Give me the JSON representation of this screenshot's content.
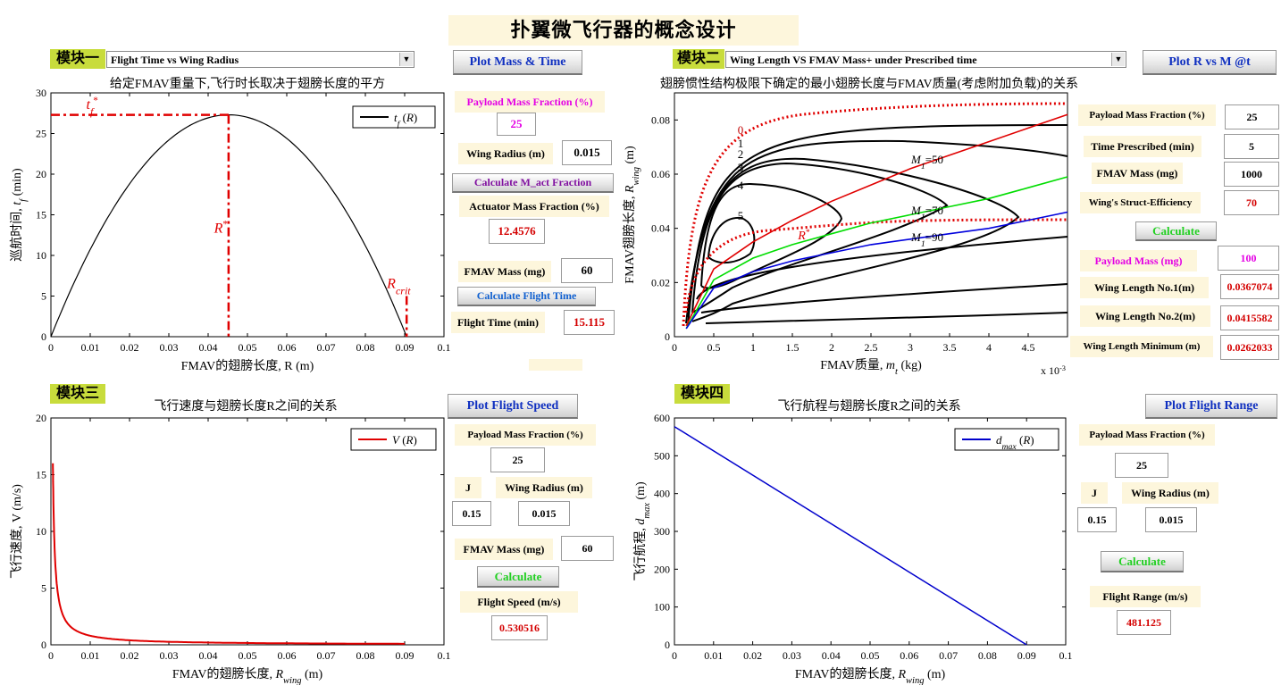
{
  "page_title": "扑翼微飞行器的概念设计",
  "module1": {
    "tag": "模块一",
    "dropdown_value": "Flight Time vs Wing Radius",
    "plot_button": "Plot Mass & Time",
    "plot_title": "给定FMAV重量下,飞行时长取决于翅膀长度的平方",
    "payload_label": "Payload Mass Fraction (%)",
    "payload_value": "25",
    "wing_radius_label": "Wing Radius (m)",
    "wing_radius_value": "0.015",
    "calc_act_button": "Calculate M_act Fraction",
    "actuator_label": "Actuator Mass Fraction (%)",
    "actuator_value": "12.4576",
    "fmav_mass_label": "FMAV Mass (mg)",
    "fmav_mass_value": "60",
    "calc_time_button": "Calculate Flight Time",
    "flight_time_label": "Flight Time (min)",
    "flight_time_value": "15.115"
  },
  "module2": {
    "tag": "模块二",
    "dropdown_value": "Wing Length VS FMAV Mass+ under Prescribed time",
    "plot_button": "Plot R vs M @t",
    "plot_title": "翅膀惯性结构极限下确定的最小翅膀长度与FMAV质量(考虑附加负载)的关系",
    "payload_label": "Payload Mass Fraction (%)",
    "payload_value": "25",
    "time_label": "Time Prescribed (min)",
    "time_value": "5",
    "fmav_mass_label": "FMAV Mass (mg)",
    "fmav_mass_value": "1000",
    "struct_label": "Wing's Struct-Efficiency",
    "struct_value": "70",
    "calc_button": "Calculate",
    "payload_mass_label": "Payload Mass (mg)",
    "payload_mass_value": "100",
    "wl1_label": "Wing Length No.1(m)",
    "wl1_value": "0.0367074",
    "wl2_label": "Wing Length No.2(m)",
    "wl2_value": "0.0415582",
    "wlmin_label": "Wing Length Minimum (m)",
    "wlmin_value": "0.0262033"
  },
  "module3": {
    "tag": "模块三",
    "plot_title": "飞行速度与翅膀长度R之间的关系",
    "plot_button": "Plot Flight Speed",
    "payload_label": "Payload Mass Fraction (%)",
    "payload_value": "25",
    "j_label": "J",
    "wing_radius_label": "Wing Radius (m)",
    "j_value": "0.15",
    "wing_radius_value": "0.015",
    "fmav_mass_label": "FMAV Mass (mg)",
    "fmav_mass_value": "60",
    "calc_button": "Calculate",
    "speed_label": "Flight Speed (m/s)",
    "speed_value": "0.530516"
  },
  "module4": {
    "tag": "模块四",
    "plot_title": "飞行航程与翅膀长度R之间的关系",
    "plot_button": "Plot Flight Range",
    "payload_label": "Payload Mass Fraction (%)",
    "payload_value": "25",
    "j_label": "J",
    "wing_radius_label": "Wing Radius (m)",
    "j_value": "0.15",
    "wing_radius_value": "0.015",
    "calc_button": "Calculate",
    "range_label": "Flight Range (m/s)",
    "range_value": "481.125"
  },
  "chart_data": [
    {
      "id": "flight-time",
      "type": "line",
      "xlabel": "FMAV的翅膀长度, R (m)",
      "ylabel": "巡航时间, t_f (min)",
      "xlim": [
        0,
        0.1
      ],
      "ylim": [
        0,
        30
      ],
      "xticks": [
        "0",
        "0.01",
        "0.02",
        "0.03",
        "0.04",
        "0.05",
        "0.06",
        "0.07",
        "0.08",
        "0.09",
        "0.1"
      ],
      "yticks": [
        "0",
        "5",
        "10",
        "15",
        "20",
        "25",
        "30"
      ],
      "legend": "t_f (R)",
      "legend_position": "top-right",
      "series": [
        {
          "name": "t_f (R)",
          "color": "#000000",
          "r_crit": 0.0905,
          "peak_r": 0.0452,
          "peak_t": 27.3
        }
      ],
      "annotations": {
        "t_star": "t_f*",
        "r_star": "R*",
        "r_crit": "R_crit"
      },
      "ref_lines": {
        "t_star_value": 27.3,
        "r_star_value": 0.0452,
        "r_crit_value": 0.0905,
        "r_crit_height": 5
      }
    },
    {
      "id": "wing-length-mass",
      "type": "line",
      "xlabel": "FMAV质量, m_t (kg)",
      "ylabel": "FMAV翅膀长度, R_wing (m)",
      "x_scale_label": "x 10^-3",
      "xlim": [
        0,
        5
      ],
      "ylim": [
        0,
        0.09
      ],
      "xticks": [
        "0",
        "0.5",
        "1",
        "1.5",
        "2",
        "2.5",
        "3",
        "3.5",
        "4",
        "4.5"
      ],
      "yticks": [
        "0",
        "0.02",
        "0.04",
        "0.06",
        "0.08"
      ],
      "contour_labels": [
        "0",
        "1",
        "2",
        "3",
        "4",
        "5"
      ],
      "line_labels": [
        "M_1=50",
        "M_1=70",
        "M_1=90"
      ],
      "r_star_label": "R*",
      "series": [
        {
          "name": "M_1=50",
          "color": "#e00000",
          "x": [
            0.15,
            0.5,
            1,
            1.5,
            2,
            2.5,
            3,
            3.5,
            4,
            4.5,
            5
          ],
          "y": [
            0.004,
            0.025,
            0.035,
            0.043,
            0.05,
            0.056,
            0.062,
            0.067,
            0.072,
            0.077,
            0.082
          ]
        },
        {
          "name": "M_1=70",
          "color": "#00dd00",
          "x": [
            0.15,
            0.5,
            1,
            1.5,
            2,
            2.5,
            3,
            3.5,
            4,
            4.5,
            5
          ],
          "y": [
            0.003,
            0.021,
            0.029,
            0.034,
            0.038,
            0.042,
            0.045,
            0.048,
            0.051,
            0.055,
            0.059
          ]
        },
        {
          "name": "M_1=90",
          "color": "#0000dd",
          "x": [
            0.15,
            0.5,
            1,
            1.5,
            2,
            2.5,
            3,
            3.5,
            4,
            4.5,
            5
          ],
          "y": [
            0.003,
            0.018,
            0.024,
            0.028,
            0.031,
            0.034,
            0.036,
            0.038,
            0.04,
            0.043,
            0.046
          ]
        }
      ]
    },
    {
      "id": "flight-speed",
      "type": "line",
      "xlabel": "FMAV的翅膀长度, R_wing (m)",
      "ylabel": "飞行速度, V (m/s)",
      "xlim": [
        0,
        0.1
      ],
      "ylim": [
        0,
        20
      ],
      "xticks": [
        "0",
        "0.01",
        "0.02",
        "0.03",
        "0.04",
        "0.05",
        "0.06",
        "0.07",
        "0.08",
        "0.09",
        "0.1"
      ],
      "yticks": [
        "0",
        "5",
        "10",
        "15",
        "20"
      ],
      "legend": "V (R)",
      "legend_position": "top-right",
      "series": [
        {
          "name": "V (R)",
          "color": "#e00000",
          "x_start": 0.0005,
          "x_end": 0.09,
          "coefficient": 0.008
        }
      ]
    },
    {
      "id": "flight-range",
      "type": "line",
      "xlabel": "FMAV的翅膀长度, R_wing (m)",
      "ylabel": "飞行航程, d_max (m)",
      "xlim": [
        0,
        0.1
      ],
      "ylim": [
        0,
        600
      ],
      "xticks": [
        "0",
        "0.01",
        "0.02",
        "0.03",
        "0.04",
        "0.05",
        "0.06",
        "0.07",
        "0.08",
        "0.09",
        "0.1"
      ],
      "yticks": [
        "0",
        "100",
        "200",
        "300",
        "400",
        "500",
        "600"
      ],
      "legend": "d_max (R)",
      "legend_position": "top-right",
      "series": [
        {
          "name": "d_max (R)",
          "color": "#0000cc",
          "x": [
            0,
            0.09
          ],
          "y": [
            577,
            0
          ]
        }
      ]
    }
  ]
}
